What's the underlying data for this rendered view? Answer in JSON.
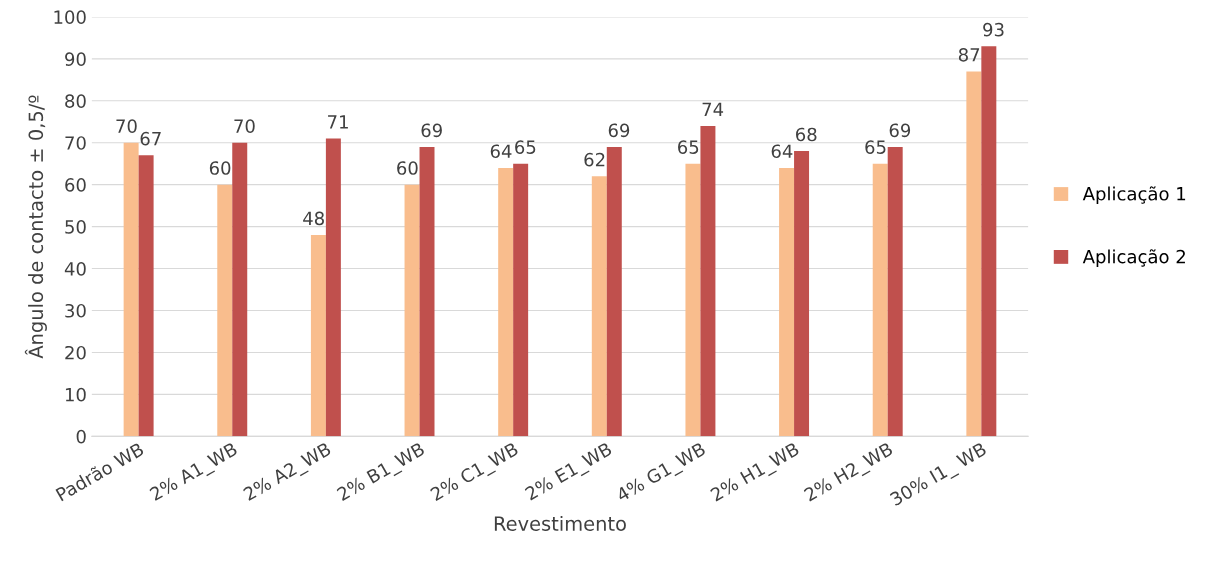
{
  "chart_data": {
    "type": "bar",
    "xlabel": "Revestimento",
    "ylabel": "Ângulo de contacto ± 0,5/º",
    "categories": [
      "Padrão WB",
      "2% A1_WB",
      "2% A2_WB",
      "2% B1_WB",
      "2% C1_WB",
      "2% E1_WB",
      "4% G1_WB",
      "2% H1_WB",
      "2% H2_WB",
      "30% I1_ WB"
    ],
    "series": [
      {
        "name": "Aplicação 1",
        "color": "#f9bd8d",
        "values": [
          70,
          60,
          48,
          60,
          64,
          62,
          65,
          64,
          65,
          87
        ]
      },
      {
        "name": "Aplicação 2",
        "color": "#c0504d",
        "values": [
          67,
          70,
          71,
          69,
          65,
          69,
          74,
          68,
          69,
          93
        ]
      }
    ],
    "ylim": [
      0,
      100
    ],
    "yticks": [
      0,
      10,
      20,
      30,
      40,
      50,
      60,
      70,
      80,
      90,
      100
    ],
    "grid": "y",
    "legend": "right",
    "data_labels": true
  }
}
